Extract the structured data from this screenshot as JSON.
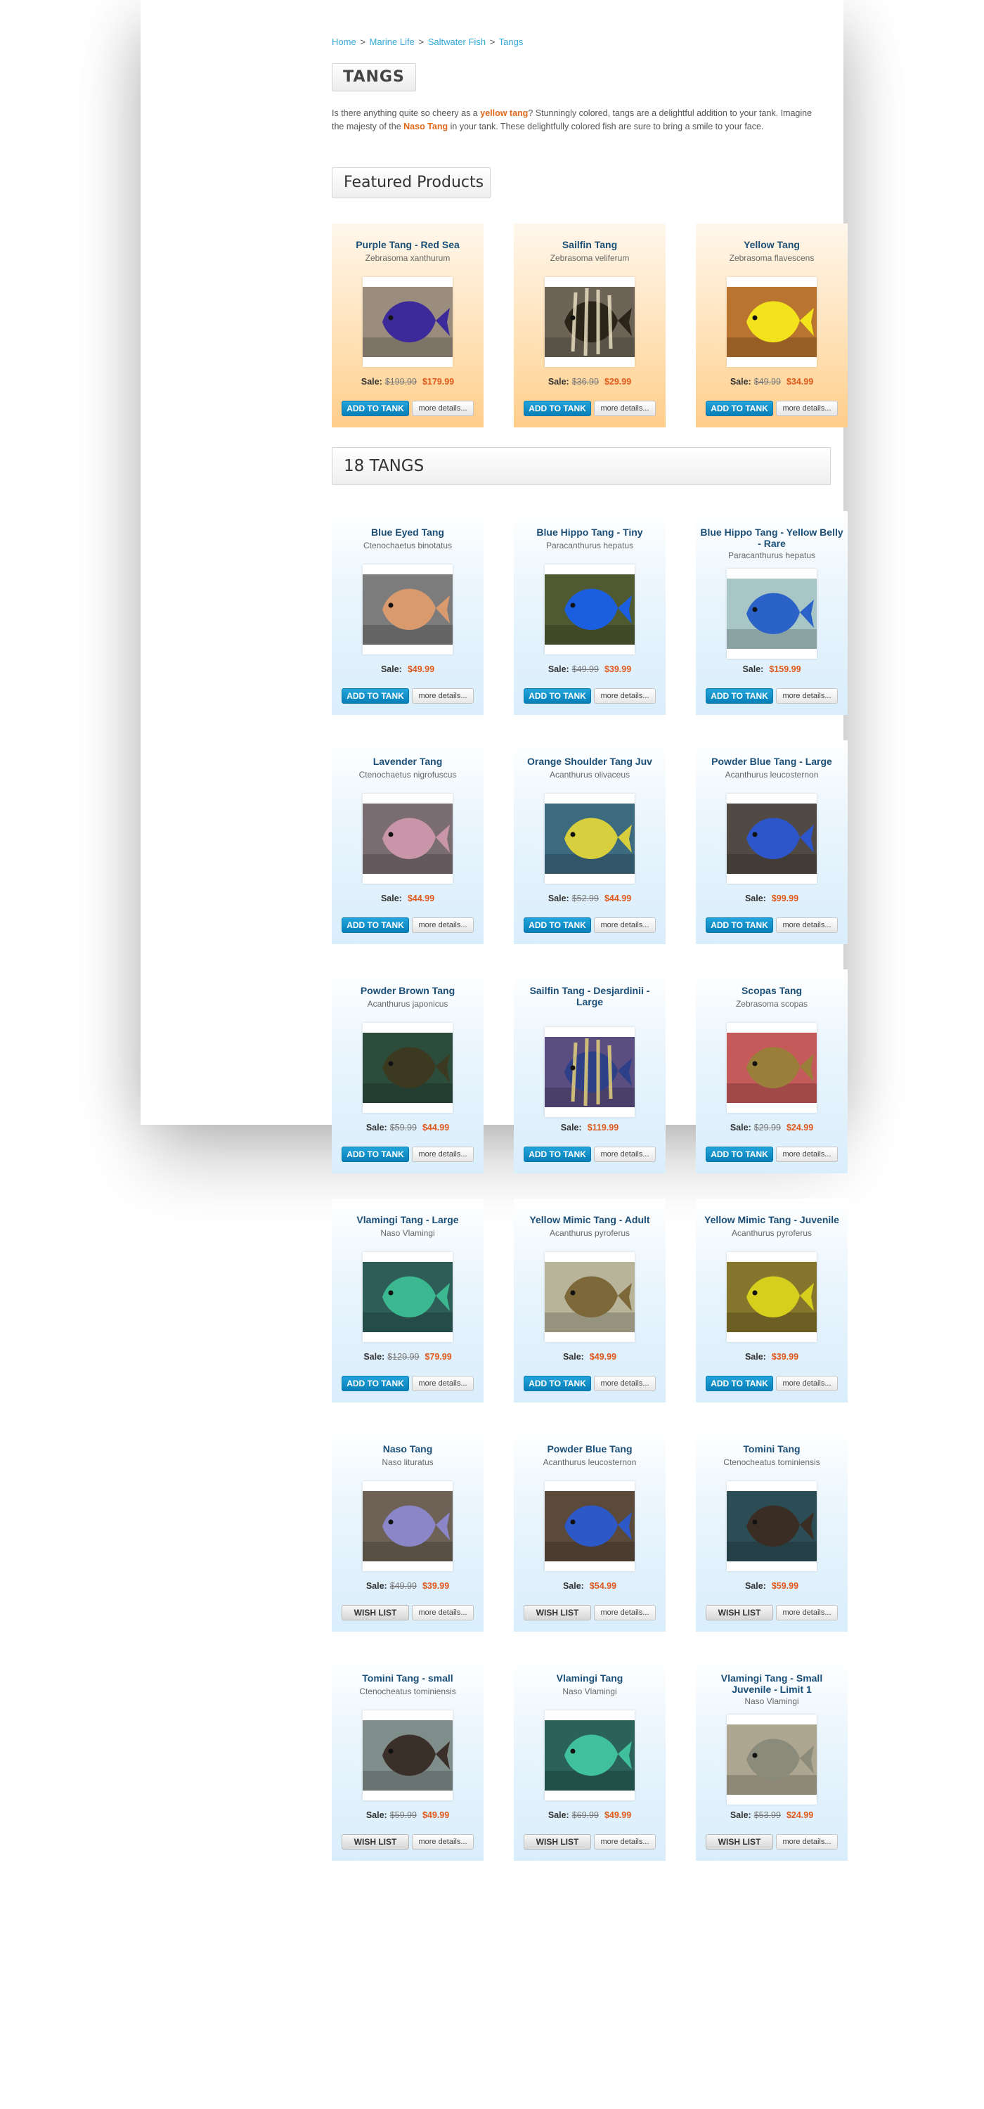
{
  "breadcrumb": [
    "Home",
    "Marine Life",
    "Saltwater Fish",
    "Tangs"
  ],
  "breadcrumb_separator": ">",
  "page_title": "TANGS",
  "intro": {
    "t1": "Is there anything quite so cheery as a ",
    "hl1": "yellow tang",
    "t2": "? Stunningly colored, tangs are a delightful addition to your tank. Imagine the majesty of the ",
    "hl2": "Naso Tang",
    "t3": " in your tank. These delightfully colored fish are sure to bring a smile to your face."
  },
  "featured_heading": "Featured Products",
  "tangs_heading": "18  TANGS",
  "labels": {
    "sale": "Sale:",
    "add": "ADD TO TANK",
    "wish": "WISH LIST",
    "more": "more details..."
  },
  "colors": {
    "link": "#34a9d8",
    "price": "#e0591b",
    "button": "#1596cf",
    "title": "#1b4f77"
  },
  "featured": [
    {
      "name": "Purple Tang - Red Sea",
      "sci": "Zebrasoma xanthurum",
      "was": "$199.99",
      "now": "$179.99",
      "action": "add",
      "icon": "purple-tang-photo",
      "fish": "#3d2a9a",
      "bg": "#9a8d7e"
    },
    {
      "name": "Sailfin Tang",
      "sci": "Zebrasoma veliferum",
      "was": "$36.99",
      "now": "$29.99",
      "action": "add",
      "icon": "sailfin-tang-photo",
      "fish": "#2b2418",
      "bg": "#6d6457",
      "stripes": "#e8ddc0"
    },
    {
      "name": "Yellow Tang",
      "sci": "Zebrasoma flavescens",
      "was": "$49.99",
      "now": "$34.99",
      "action": "add",
      "icon": "yellow-tang-photo",
      "fish": "#f3e31c",
      "bg": "#b9742f"
    }
  ],
  "tangs": [
    {
      "name": "Blue Eyed Tang",
      "sci": "Ctenochaetus binotatus",
      "was": "",
      "now": "$49.99",
      "action": "add",
      "icon": "blue-eyed-tang-photo",
      "fish": "#d99a6e",
      "bg": "#7c7c7c"
    },
    {
      "name": "Blue Hippo Tang - Tiny",
      "sci": "Paracanthurus hepatus",
      "was": "$49.99",
      "now": "$39.99",
      "action": "add",
      "icon": "blue-hippo-tang-photo",
      "fish": "#1b5fe0",
      "bg": "#4f5a31"
    },
    {
      "name": "Blue Hippo Tang - Yellow Belly - Rare",
      "sci": "Paracanthurus hepatus",
      "was": "",
      "now": "$159.99",
      "action": "add",
      "icon": "blue-hippo-yellow-belly-photo",
      "fish": "#2b62c8",
      "bg": "#a9c6c6"
    },
    {
      "name": "Lavender Tang",
      "sci": "Ctenochaetus nigrofuscus",
      "was": "",
      "now": "$44.99",
      "action": "add",
      "icon": "lavender-tang-photo",
      "fish": "#c995a8",
      "bg": "#7a6d72"
    },
    {
      "name": "Orange Shoulder Tang Juv",
      "sci": "Acanthurus olivaceus",
      "was": "$52.99",
      "now": "$44.99",
      "action": "add",
      "icon": "orange-shoulder-tang-photo",
      "fish": "#d8cf3e",
      "bg": "#3c6a7e"
    },
    {
      "name": "Powder Blue Tang - Large",
      "sci": "Acanthurus leucosternon",
      "was": "",
      "now": "$99.99",
      "action": "add",
      "icon": "powder-blue-tang-large-photo",
      "fish": "#2c56c9",
      "bg": "#514a44"
    },
    {
      "name": "Powder Brown Tang",
      "sci": "Acanthurus japonicus",
      "was": "$59.99",
      "now": "$44.99",
      "action": "add",
      "icon": "powder-brown-tang-photo",
      "fish": "#3b3a20",
      "bg": "#2d4d3c"
    },
    {
      "name": "Sailfin Tang - Desjardinii - Large",
      "sci": "",
      "was": "",
      "now": "$119.99",
      "action": "add",
      "icon": "sailfin-desjardinii-photo",
      "fish": "#2d3f86",
      "bg": "#5a4d80",
      "stripes": "#e3d07a"
    },
    {
      "name": "Scopas Tang",
      "sci": "Zebrasoma scopas",
      "was": "$29.99",
      "now": "$24.99",
      "action": "add",
      "icon": "scopas-tang-photo",
      "fish": "#9a7f3a",
      "bg": "#c55a5a"
    },
    {
      "name": "Vlamingi Tang - Large",
      "sci": "Naso Vlamingi",
      "was": "$129.99",
      "now": "$79.99",
      "action": "add",
      "icon": "vlamingi-tang-large-photo",
      "fish": "#3bb88f",
      "bg": "#2e5d58"
    },
    {
      "name": "Yellow Mimic Tang - Adult",
      "sci": "Acanthurus pyroferus",
      "was": "",
      "now": "$49.99",
      "action": "add",
      "icon": "yellow-mimic-adult-photo",
      "fish": "#7c6838",
      "bg": "#b8b49a"
    },
    {
      "name": "Yellow Mimic Tang - Juvenile",
      "sci": "Acanthurus pyroferus",
      "was": "",
      "now": "$39.99",
      "action": "add",
      "icon": "yellow-mimic-juvenile-photo",
      "fish": "#d6cf1e",
      "bg": "#86752c"
    },
    {
      "name": "Naso Tang",
      "sci": "Naso lituratus",
      "was": "$49.99",
      "now": "$39.99",
      "action": "wish",
      "icon": "naso-tang-photo",
      "fish": "#8a86c8",
      "bg": "#6d6255"
    },
    {
      "name": "Powder Blue Tang",
      "sci": "Acanthurus leucosternon",
      "was": "",
      "now": "$54.99",
      "action": "wish",
      "icon": "powder-blue-tang-photo",
      "fish": "#2d58c8",
      "bg": "#5b4a3a"
    },
    {
      "name": "Tomini Tang",
      "sci": "Ctenocheatus tominiensis",
      "was": "",
      "now": "$59.99",
      "action": "wish",
      "icon": "tomini-tang-photo",
      "fish": "#3a2d24",
      "bg": "#2c4d55"
    },
    {
      "name": "Tomini Tang - small",
      "sci": "Ctenocheatus tominiensis",
      "was": "$59.99",
      "now": "$49.99",
      "action": "wish",
      "icon": "tomini-tang-small-photo",
      "fish": "#3b2f2a",
      "bg": "#7f8d8b"
    },
    {
      "name": "Vlamingi Tang",
      "sci": "Naso Vlamingi",
      "was": "$69.99",
      "now": "$49.99",
      "action": "wish",
      "icon": "vlamingi-tang-photo",
      "fish": "#40c09c",
      "bg": "#2a6158"
    },
    {
      "name": "Vlamingi Tang - Small Juvenile - Limit 1",
      "sci": "Naso Vlamingi",
      "was": "$53.99",
      "now": "$24.99",
      "action": "wish",
      "icon": "vlamingi-small-juvenile-photo",
      "fish": "#8a8b7a",
      "bg": "#aea690"
    }
  ]
}
